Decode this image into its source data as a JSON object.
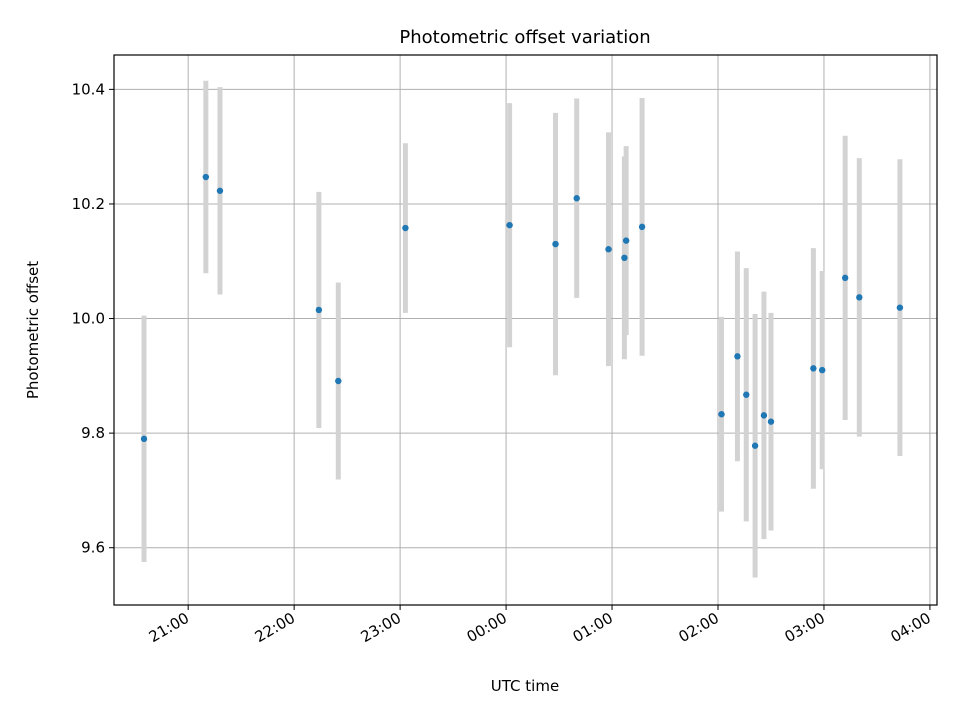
{
  "chart_data": {
    "type": "scatter",
    "title": "Photometric offset variation",
    "xlabel": "UTC time",
    "ylabel": "Photometric offset",
    "x_ticks": [
      "21:00",
      "22:00",
      "23:00",
      "00:00",
      "01:00",
      "02:00",
      "03:00",
      "04:00"
    ],
    "y_ticks": [
      "9.6",
      "9.8",
      "10.0",
      "10.2",
      "10.4"
    ],
    "grid": true,
    "colors": {
      "points": "#1f77b4",
      "errorbars": "#d3d3d3",
      "grid": "#b0b0b0"
    },
    "x_range": [
      "20:18",
      "04:04"
    ],
    "ylim": [
      9.5,
      10.46
    ],
    "points": [
      {
        "time": "20:35",
        "y": 9.79,
        "err": 0.215
      },
      {
        "time": "21:10",
        "y": 10.247,
        "err": 0.168
      },
      {
        "time": "21:18",
        "y": 10.223,
        "err": 0.181
      },
      {
        "time": "22:14",
        "y": 10.015,
        "err": 0.206
      },
      {
        "time": "22:25",
        "y": 9.891,
        "err": 0.172
      },
      {
        "time": "23:03",
        "y": 10.158,
        "err": 0.148
      },
      {
        "time": "00:02",
        "y": 10.163,
        "err": 0.213
      },
      {
        "time": "00:28",
        "y": 10.13,
        "err": 0.229
      },
      {
        "time": "00:40",
        "y": 10.21,
        "err": 0.174
      },
      {
        "time": "00:58",
        "y": 10.121,
        "err": 0.204
      },
      {
        "time": "01:07",
        "y": 10.106,
        "err": 0.177
      },
      {
        "time": "01:08",
        "y": 10.136,
        "err": 0.165
      },
      {
        "time": "01:17",
        "y": 10.16,
        "err": 0.225
      },
      {
        "time": "02:02",
        "y": 9.833,
        "err": 0.17
      },
      {
        "time": "02:11",
        "y": 9.934,
        "err": 0.183
      },
      {
        "time": "02:16",
        "y": 9.867,
        "err": 0.221
      },
      {
        "time": "02:21",
        "y": 9.778,
        "err": 0.23
      },
      {
        "time": "02:26",
        "y": 9.831,
        "err": 0.216
      },
      {
        "time": "02:30",
        "y": 9.82,
        "err": 0.19
      },
      {
        "time": "02:54",
        "y": 9.913,
        "err": 0.21
      },
      {
        "time": "02:59",
        "y": 9.91,
        "err": 0.173
      },
      {
        "time": "03:12",
        "y": 10.071,
        "err": 0.248
      },
      {
        "time": "03:20",
        "y": 10.037,
        "err": 0.243
      },
      {
        "time": "03:43",
        "y": 10.019,
        "err": 0.259
      }
    ]
  }
}
